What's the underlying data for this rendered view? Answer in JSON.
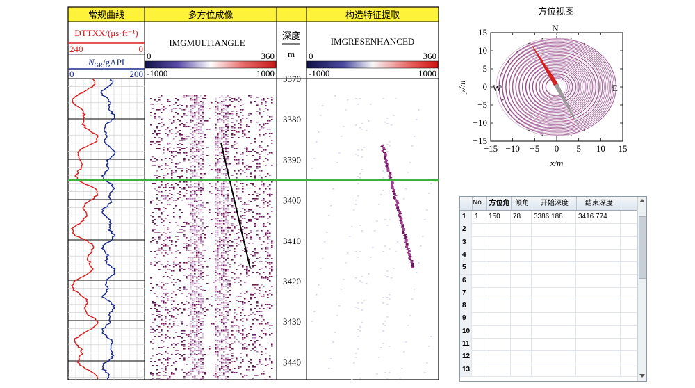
{
  "log_panel": {
    "headers": {
      "curves": "常规曲线",
      "multi": "多方位成像",
      "feature": "构造特征提取"
    },
    "depth_label": "深度",
    "depth_unit": "m",
    "curve_dt": {
      "name": "DTTXX/(μs·ft⁻¹)",
      "left": "240",
      "right": "0",
      "color": "#d62020"
    },
    "curve_gr": {
      "name_main": "N",
      "name_sub": "GR",
      "name_rest": "/gAPI",
      "left": "0",
      "right": "200",
      "color": "#1a2a8c"
    },
    "img_multi": {
      "name": "IMGMULTIANGLE",
      "scale_top_left": "0",
      "scale_top_right": "360",
      "scale_bot_left": "-1000",
      "scale_bot_right": "1000"
    },
    "img_feature": {
      "name": "IMGRESENHANCED",
      "scale_top_left": "0",
      "scale_top_right": "360",
      "scale_bot_left": "-1000",
      "scale_bot_right": "1000"
    },
    "depth_ticks": [
      "3370",
      "3380",
      "3390",
      "3400",
      "3410",
      "3420",
      "3430",
      "3440"
    ],
    "marker_depth": 3395,
    "colors": {
      "header_bg": "#fff23a",
      "marker": "#3bb33b",
      "dt": "#d62020",
      "gr": "#1a2a8c",
      "image": "#7a1a6a"
    }
  },
  "azimuth_view": {
    "title": "方位视图",
    "north": "N",
    "south": "",
    "east": "E",
    "west": "W",
    "xlabel": "x/m",
    "ylabel": "y/m",
    "ticks": [
      "−15",
      "−10",
      "−5",
      "0",
      "5",
      "10",
      "15"
    ]
  },
  "table": {
    "columns": [
      "No",
      "方位角",
      "倾角",
      "开始深度",
      "结束深度"
    ],
    "rows": [
      {
        "idx": "1",
        "no": "1",
        "azimuth": "150",
        "dip": "78",
        "start": "3386.188",
        "end": "3416.774"
      },
      {
        "idx": "2",
        "no": "",
        "azimuth": "",
        "dip": "",
        "start": "",
        "end": ""
      },
      {
        "idx": "3",
        "no": "",
        "azimuth": "",
        "dip": "",
        "start": "",
        "end": ""
      },
      {
        "idx": "4",
        "no": "",
        "azimuth": "",
        "dip": "",
        "start": "",
        "end": ""
      },
      {
        "idx": "5",
        "no": "",
        "azimuth": "",
        "dip": "",
        "start": "",
        "end": ""
      },
      {
        "idx": "6",
        "no": "",
        "azimuth": "",
        "dip": "",
        "start": "",
        "end": ""
      },
      {
        "idx": "7",
        "no": "",
        "azimuth": "",
        "dip": "",
        "start": "",
        "end": ""
      },
      {
        "idx": "8",
        "no": "",
        "azimuth": "",
        "dip": "",
        "start": "",
        "end": ""
      },
      {
        "idx": "9",
        "no": "",
        "azimuth": "",
        "dip": "",
        "start": "",
        "end": ""
      },
      {
        "idx": "10",
        "no": "",
        "azimuth": "",
        "dip": "",
        "start": "",
        "end": ""
      },
      {
        "idx": "11",
        "no": "",
        "azimuth": "",
        "dip": "",
        "start": "",
        "end": ""
      },
      {
        "idx": "12",
        "no": "",
        "azimuth": "",
        "dip": "",
        "start": "",
        "end": ""
      },
      {
        "idx": "13",
        "no": "",
        "azimuth": "",
        "dip": "",
        "start": "",
        "end": ""
      }
    ]
  }
}
